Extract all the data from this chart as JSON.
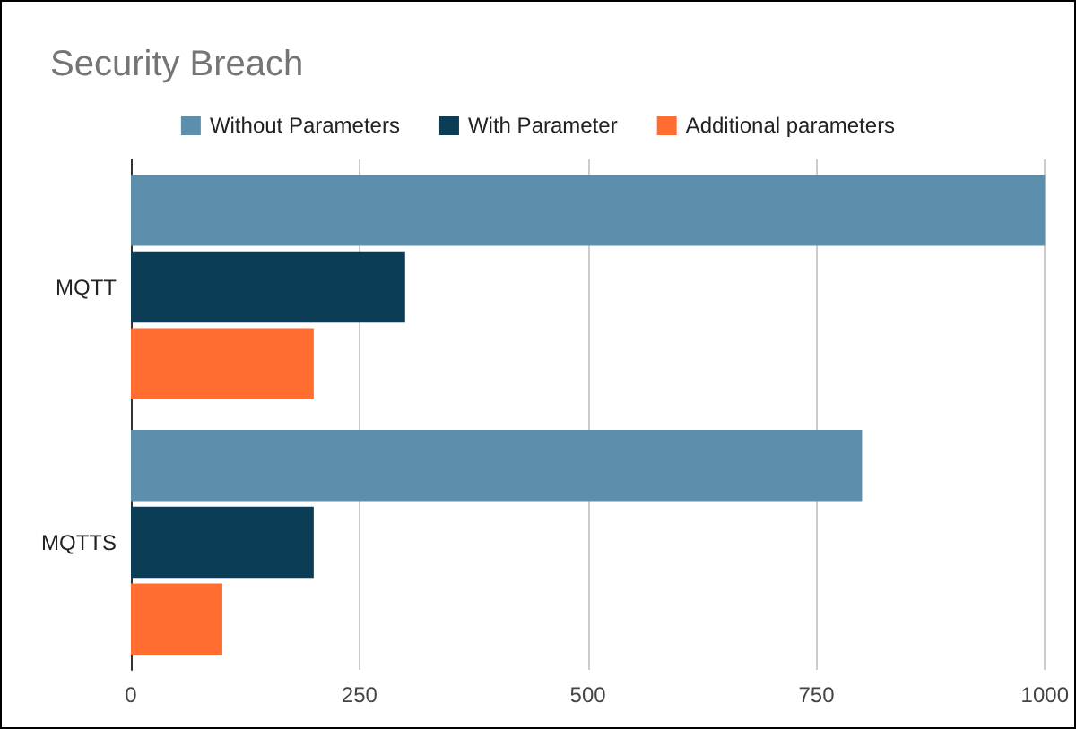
{
  "chart_data": {
    "type": "bar",
    "orientation": "horizontal",
    "title": "Security Breach",
    "categories": [
      "MQTT",
      "MQTTS"
    ],
    "series": [
      {
        "name": "Without Parameters",
        "color": "#5b8fac",
        "values": [
          1000,
          800
        ]
      },
      {
        "name": "With Parameter",
        "color": "#0b3d57",
        "values": [
          300,
          200
        ]
      },
      {
        "name": "Additional parameters",
        "color": "#ff6d31",
        "values": [
          200,
          100
        ]
      }
    ],
    "xlim": [
      0,
      1000
    ],
    "xticks": [
      0,
      250,
      500,
      750,
      1000
    ],
    "grid": "x",
    "legend": "top"
  }
}
